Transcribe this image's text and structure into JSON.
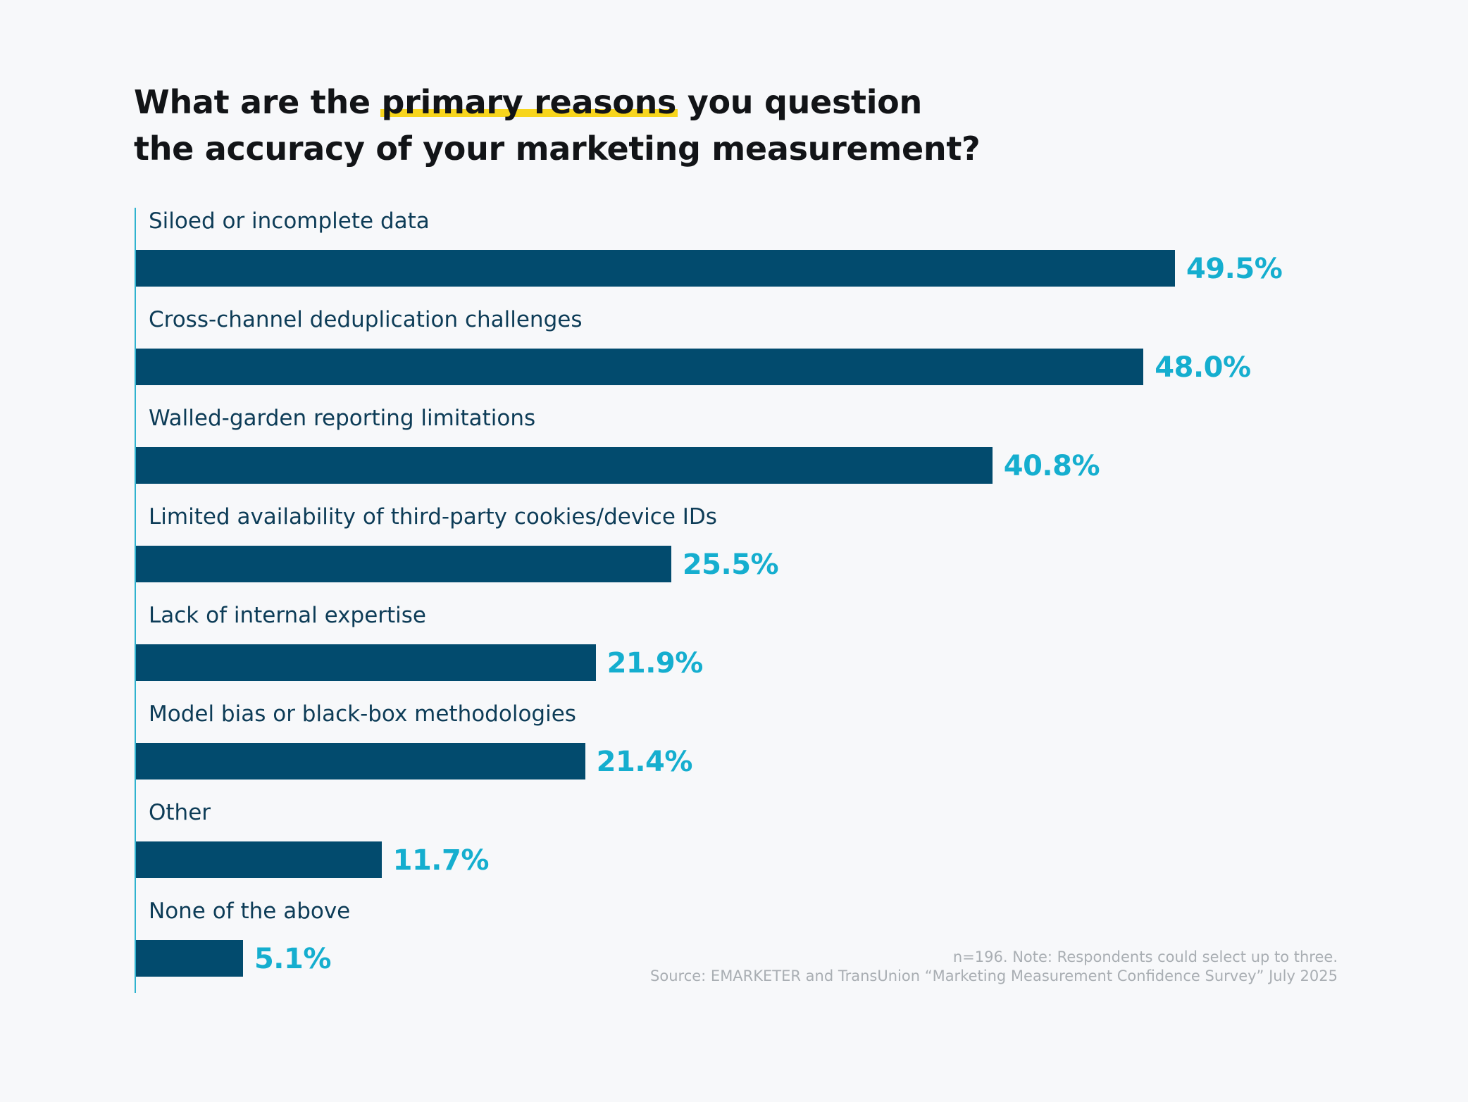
{
  "title": {
    "prefix": "What are the ",
    "highlight": "primary reasons",
    "suffix": " you question",
    "line2": "the accuracy of your marketing measurement?"
  },
  "chart_data": {
    "type": "bar",
    "orientation": "horizontal",
    "title": "What are the primary reasons you question the accuracy of your marketing measurement?",
    "categories": [
      "Siloed or incomplete data",
      "Cross-channel deduplication challenges",
      "Walled-garden reporting limitations",
      "Limited availability of third-party cookies/device IDs",
      "Lack of internal expertise",
      "Model bias or black-box methodologies",
      "Other",
      "None of the above"
    ],
    "values": [
      49.5,
      48.0,
      40.8,
      25.5,
      21.9,
      21.4,
      11.7,
      5.1
    ],
    "value_labels": [
      "49.5%",
      "48.0%",
      "40.8%",
      "25.5%",
      "21.9%",
      "21.4%",
      "11.7%",
      "5.1%"
    ],
    "unit": "%",
    "xlabel": "",
    "ylabel": "",
    "xlim": [
      0,
      49.5
    ],
    "grid": false
  },
  "colors": {
    "bar": "#024b6e",
    "value_label": "#15aecf",
    "category_label": "#0d3c57",
    "highlight": "#f7d51d",
    "axis": "#2fb3cf",
    "background": "#f7f8fa"
  },
  "note": {
    "line1": "n=196. Note: Respondents could select up to three.",
    "line2": "Source: EMARKETER and TransUnion “Marketing Measurement Confidence Survey” July 2025"
  }
}
